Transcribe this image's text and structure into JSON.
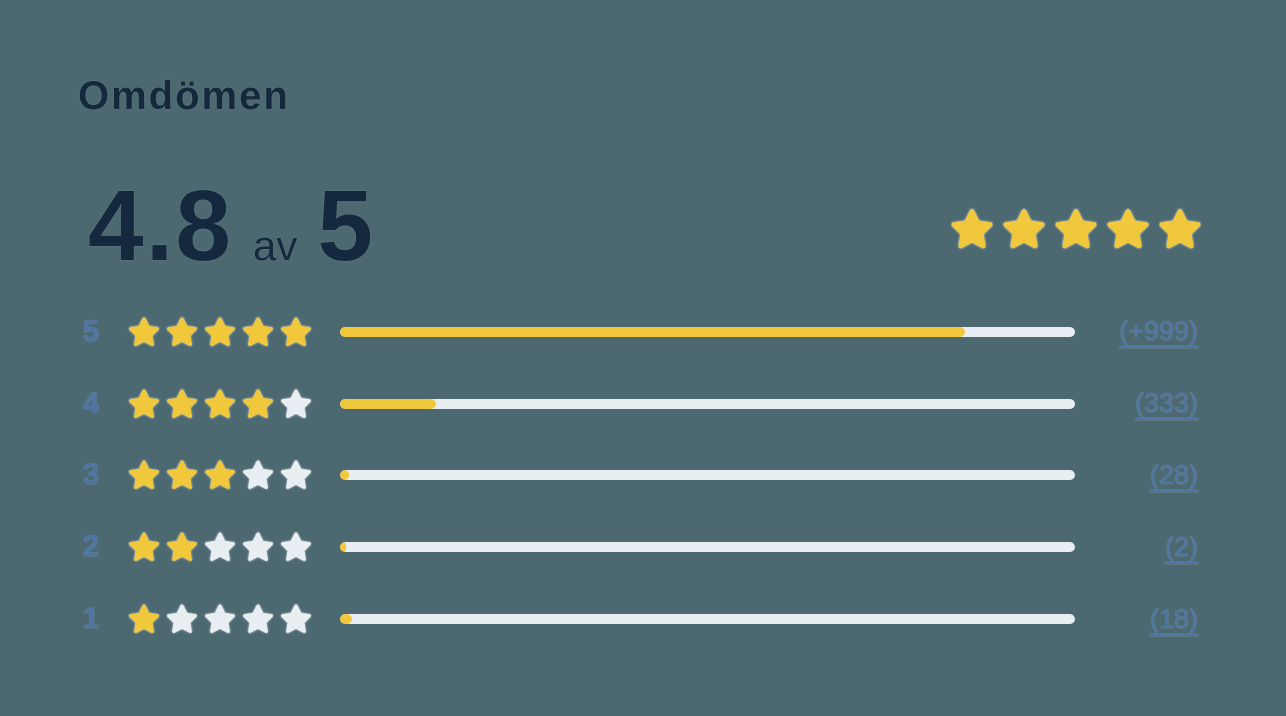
{
  "title": "Omdömen",
  "summary": {
    "score": "4.8",
    "separator": "av",
    "max": "5",
    "stars_total": 5,
    "stars_filled": 5
  },
  "rows": [
    {
      "level": "5",
      "stars_filled": 5,
      "stars_total": 5,
      "bar_percent": 85,
      "count_label": "(+999)"
    },
    {
      "level": "4",
      "stars_filled": 4,
      "stars_total": 5,
      "bar_percent": 13,
      "count_label": "(333)"
    },
    {
      "level": "3",
      "stars_filled": 3,
      "stars_total": 5,
      "bar_percent": 1.2,
      "count_label": "(28)"
    },
    {
      "level": "2",
      "stars_filled": 2,
      "stars_total": 5,
      "bar_percent": 0.7,
      "count_label": "(2)"
    },
    {
      "level": "1",
      "stars_filled": 1,
      "stars_total": 5,
      "bar_percent": 1.7,
      "count_label": "(18)"
    }
  ],
  "icons": {
    "star": "star-icon"
  },
  "colors": {
    "background": "#4C6971",
    "navy": "#14293D",
    "star-filled": "#F1C83C",
    "star-empty": "#E9EEF3",
    "bar-track": "#E9EEF3",
    "bar-fill": "#F1C83C",
    "link": "#4E75A6"
  }
}
